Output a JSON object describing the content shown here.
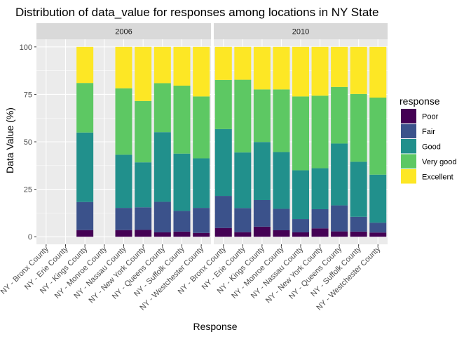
{
  "chart_data": {
    "type": "bar",
    "stacked": true,
    "title": "Distribution of data_value for responses among locations in NY State",
    "xlabel": "Response",
    "ylabel": "Data Value (%)",
    "ylim": [
      -4,
      104
    ],
    "yticks": [
      0,
      25,
      50,
      75,
      100
    ],
    "grid": true,
    "legend": {
      "title": "response",
      "placement": "right",
      "entries": [
        "Poor",
        "Fair",
        "Good",
        "Very good",
        "Excellent"
      ]
    },
    "colors": {
      "Poor": "#440154",
      "Fair": "#3B528B",
      "Good": "#21908C",
      "Very good": "#5DC863",
      "Excellent": "#FDE725",
      "panel_bg": "#EBEBEB",
      "strip_bg": "#D9D9D9",
      "grid": "#FFFFFF"
    },
    "categories": [
      "NY - Bronx County",
      "NY - Erie County",
      "NY - Kings County",
      "NY - Monroe County",
      "NY - Nassau County",
      "NY - New York County",
      "NY - Queens County",
      "NY - Suffolk County",
      "NY - Westchester County"
    ],
    "panels": [
      {
        "label": "2006",
        "series": [
          {
            "name": "Poor",
            "values": [
              null,
              null,
              3.5,
              null,
              3.5,
              3.6,
              2.3,
              2.7,
              2.0
            ]
          },
          {
            "name": "Fair",
            "values": [
              null,
              null,
              14.8,
              null,
              11.7,
              11.9,
              16.1,
              10.9,
              13.2
            ]
          },
          {
            "name": "Good",
            "values": [
              null,
              null,
              36.6,
              null,
              28.0,
              23.7,
              36.7,
              30.2,
              26.1
            ]
          },
          {
            "name": "Very good",
            "values": [
              null,
              null,
              26.1,
              null,
              35.0,
              32.3,
              25.8,
              35.8,
              32.6
            ]
          },
          {
            "name": "Excellent",
            "values": [
              null,
              null,
              19.0,
              null,
              21.8,
              28.5,
              19.1,
              20.4,
              26.1
            ]
          }
        ]
      },
      {
        "label": "2010",
        "series": [
          {
            "name": "Poor",
            "values": [
              4.6,
              2.4,
              5.3,
              3.4,
              2.3,
              4.4,
              2.8,
              2.7,
              2.2
            ]
          },
          {
            "name": "Fair",
            "values": [
              16.9,
              12.7,
              14.0,
              11.3,
              7.0,
              10.1,
              13.7,
              7.8,
              5.2
            ]
          },
          {
            "name": "Good",
            "values": [
              35.2,
              29.3,
              30.6,
              29.9,
              25.7,
              21.6,
              32.6,
              29.0,
              25.3
            ]
          },
          {
            "name": "Very good",
            "values": [
              25.9,
              38.3,
              27.7,
              33.0,
              38.9,
              38.2,
              29.8,
              35.7,
              40.6
            ]
          },
          {
            "name": "Excellent",
            "values": [
              17.4,
              17.3,
              22.4,
              22.4,
              26.1,
              25.7,
              21.1,
              24.8,
              26.7
            ]
          }
        ]
      }
    ]
  }
}
